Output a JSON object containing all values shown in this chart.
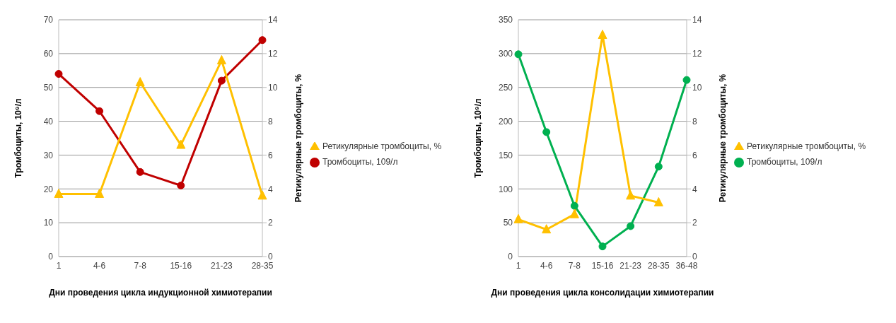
{
  "chart_data": [
    {
      "type": "line",
      "xlabel": "Дни проведения цикла индукционной химиотерапии",
      "ylabel": "Тромбоциты, 10⁹/л",
      "y2label": "Ретикулярные тромбоциты, %",
      "categories": [
        "1",
        "4-6",
        "7-8",
        "15-16",
        "21-23",
        "28-35"
      ],
      "ylim": [
        0,
        70
      ],
      "yticks": [
        0,
        10,
        20,
        30,
        40,
        50,
        60,
        70
      ],
      "y2lim": [
        0,
        14
      ],
      "y2ticks": [
        0,
        2,
        4,
        6,
        8,
        10,
        12,
        14
      ],
      "grid": "y",
      "legend": "right",
      "line_style": "solid",
      "series": [
        {
          "name": "Тромбоциты, 109/л",
          "color": "#c00000",
          "marker": "circle",
          "values": [
            54,
            43,
            25,
            21,
            52,
            64
          ]
        },
        {
          "name": "Ретикулярные тромбоциты, %",
          "color": "#ffc000",
          "marker": "triangle",
          "axis": "y2",
          "values": [
            3.7,
            3.7,
            10.3,
            6.6,
            11.6,
            3.6
          ]
        }
      ]
    },
    {
      "type": "line",
      "xlabel": "Дни проведения цикла консолидации химиотерапии",
      "ylabel": "Тромбоциты, 10⁹/л",
      "y2label": "Ретикулярные тромбоциты, %",
      "categories": [
        "1",
        "4-6",
        "7-8",
        "15-16",
        "21-23",
        "28-35",
        "36-48"
      ],
      "ylim": [
        0,
        350
      ],
      "yticks": [
        0,
        50,
        100,
        150,
        200,
        250,
        300,
        350
      ],
      "y2lim": [
        0,
        14
      ],
      "y2ticks": [
        0,
        2,
        4,
        6,
        8,
        10,
        12,
        14
      ],
      "grid": "y",
      "legend": "right",
      "line_style": "solid",
      "series": [
        {
          "name": "Тромбоциты, 109/л",
          "color": "#00b050",
          "marker": "circle",
          "values": [
            299,
            184,
            75,
            15,
            45,
            133,
            261
          ]
        },
        {
          "name": "Ретикулярные тромбоциты, %",
          "color": "#ffc000",
          "marker": "triangle",
          "axis": "y2",
          "values": [
            2.2,
            1.6,
            2.5,
            13.1,
            3.6,
            3.2,
            null
          ]
        }
      ]
    }
  ]
}
